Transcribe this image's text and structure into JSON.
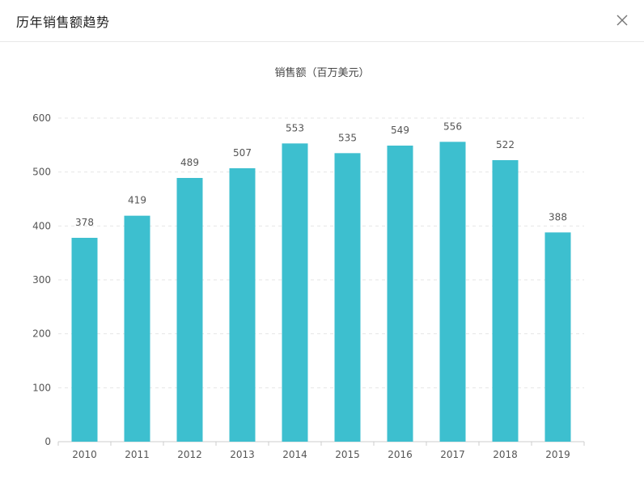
{
  "dialog": {
    "title": "历年销售额趋势"
  },
  "icons": {
    "close": "close-icon"
  },
  "colors": {
    "bar": "#3dbfcf",
    "grid": "#e6e6e6",
    "axis": "#cccccc",
    "label": "#555555"
  },
  "chart_data": {
    "type": "bar",
    "title": "销售额（百万美元）",
    "xlabel": "",
    "ylabel": "",
    "categories": [
      "2010",
      "2011",
      "2012",
      "2013",
      "2014",
      "2015",
      "2016",
      "2017",
      "2018",
      "2019"
    ],
    "values": [
      378,
      419,
      489,
      507,
      553,
      535,
      549,
      556,
      522,
      388
    ],
    "ylim": [
      0,
      600
    ],
    "yticks": [
      0,
      100,
      200,
      300,
      400,
      500,
      600
    ],
    "grid": true,
    "data_labels": true
  }
}
